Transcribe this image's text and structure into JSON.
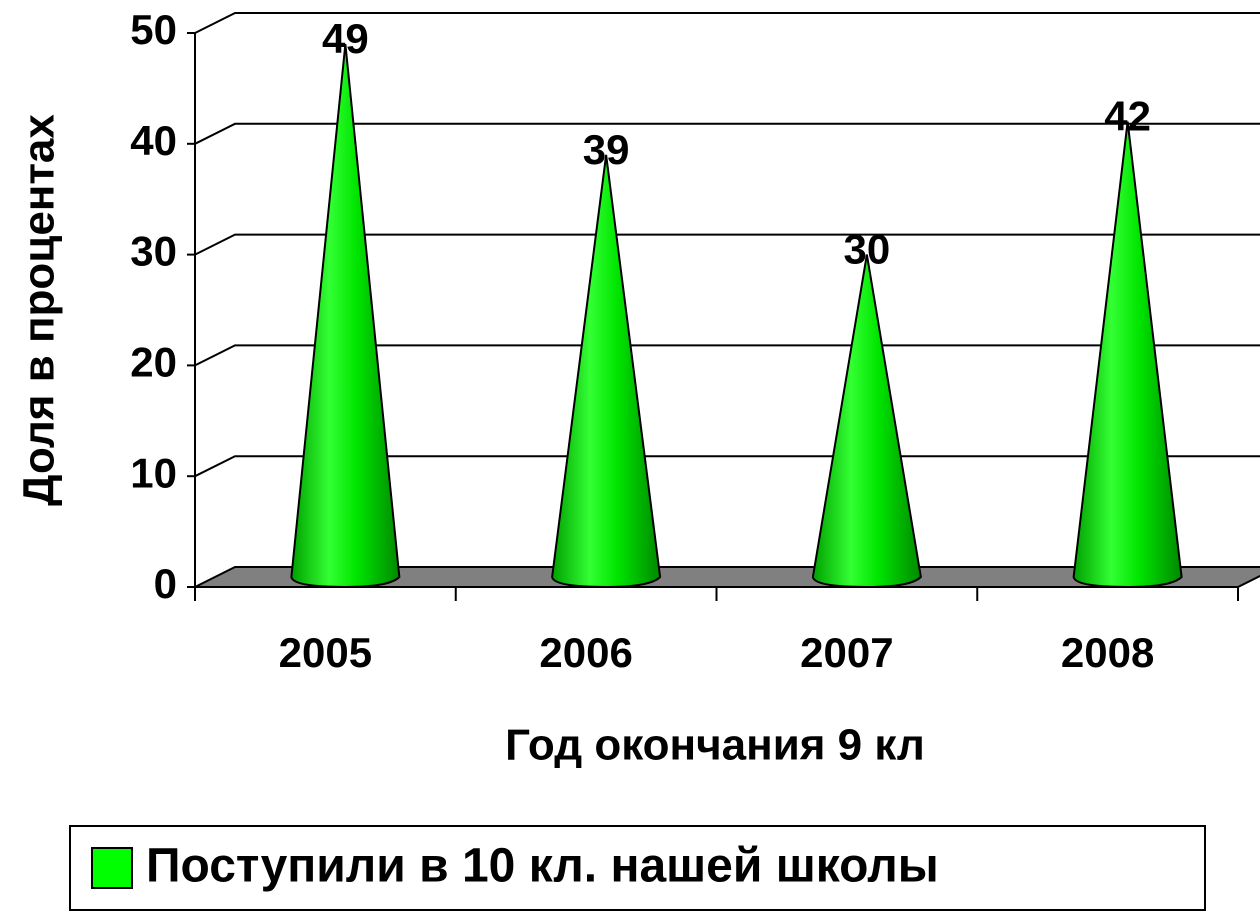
{
  "chart_data": {
    "type": "cone",
    "categories": [
      "2005",
      "2006",
      "2007",
      "2008"
    ],
    "series": [
      {
        "name": "Поступили в 10 кл. нашей школы",
        "color": "#00ff00",
        "values": [
          49,
          39,
          30,
          42
        ]
      }
    ],
    "ylim": [
      0,
      50
    ],
    "yticks": [
      0,
      10,
      20,
      30,
      40,
      50
    ],
    "grid": true,
    "ylabel": "Доля в процентах",
    "xlabel": "Год окончания 9 кл",
    "legend": "bottom"
  }
}
